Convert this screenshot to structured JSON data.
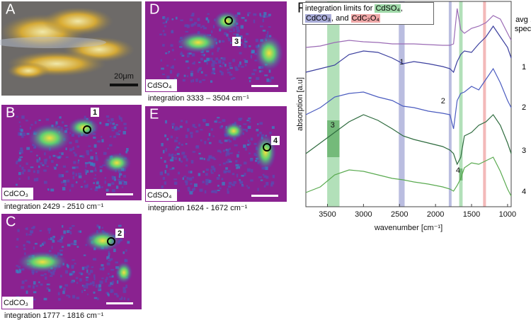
{
  "panels": [
    {
      "label": "A",
      "scale_bar": "20μm"
    },
    {
      "label": "B",
      "marker": "1",
      "compound": "CdCO₃",
      "caption": "integration 2429 - 2510 cm⁻¹"
    },
    {
      "label": "C",
      "marker": "2",
      "compound": "CdCO₃",
      "caption": "integration 1777 - 1816 cm⁻¹"
    },
    {
      "label": "D",
      "marker": "3",
      "compound": "CdSO₄",
      "caption": "integration 3333 – 3504 cm⁻¹"
    },
    {
      "label": "E",
      "marker": "4",
      "compound": "CdSO₄",
      "caption": "integration 1624 - 1672 cm⁻¹"
    }
  ],
  "chart_data": {
    "type": "line",
    "panel_label": "F",
    "legend_parts": [
      "integration limits for ",
      "CdSO₄",
      ",",
      "CdCO₃",
      ", and ",
      "CdC₂O₄"
    ],
    "x_label": "wavenumber [cm⁻¹]",
    "y_label": "absorption [a.u]",
    "xlim": [
      3800,
      950
    ],
    "xticks": [
      3500,
      3000,
      2500,
      2000,
      1500,
      1000
    ],
    "ylim": [
      0,
      29
    ],
    "x": [
      3800,
      3600,
      3400,
      3200,
      3000,
      2800,
      2600,
      2450,
      2300,
      2100,
      1900,
      1800,
      1750,
      1700,
      1650,
      1600,
      1500,
      1400,
      1300,
      1200,
      1100,
      1000,
      950
    ],
    "series": [
      {
        "name": "avg . spec.",
        "color": "#9b6bb5",
        "values": [
          22.5,
          22.7,
          23.2,
          23.5,
          23.3,
          23.2,
          23,
          23,
          23,
          22.9,
          22.8,
          22.8,
          23,
          28,
          25,
          24.5,
          25.2,
          25.5,
          26,
          27,
          26.5,
          24.5,
          23.5
        ]
      },
      {
        "name": "1",
        "color": "#3b3f9e",
        "values": [
          19,
          19.5,
          20,
          21.5,
          22,
          21.8,
          21,
          20.2,
          20.5,
          20.2,
          19.8,
          19.5,
          19,
          20.5,
          21.5,
          22,
          21.8,
          23,
          24,
          25.5,
          24,
          22.5,
          21
        ]
      },
      {
        "name": "2",
        "color": "#4a5bbf",
        "values": [
          13,
          14,
          15.5,
          16,
          16.2,
          15.5,
          15,
          14.2,
          14,
          13.5,
          13.2,
          13,
          11,
          15,
          16,
          16.2,
          17,
          16.5,
          18,
          19.5,
          17.5,
          15,
          14
        ]
      },
      {
        "name": "3",
        "color": "#2e6b3e",
        "values": [
          7.5,
          9,
          10.5,
          12,
          13,
          12.2,
          11,
          10,
          9.5,
          9,
          8.5,
          8,
          7.5,
          6,
          7,
          10,
          10.5,
          11.5,
          12,
          13,
          11.5,
          9,
          7.5
        ]
      },
      {
        "name": "4",
        "color": "#5aaa50",
        "values": [
          2,
          2.8,
          4.5,
          5.2,
          5,
          4.5,
          4,
          3.8,
          3.5,
          3.2,
          2.8,
          2.5,
          2.2,
          3,
          4,
          5.5,
          6.2,
          6,
          6.5,
          7,
          5,
          2.5,
          1.5
        ]
      }
    ],
    "bands": [
      {
        "label": "3",
        "start": 3504,
        "end": 3333,
        "color": "#9fd8a8"
      },
      {
        "label": "1",
        "start": 2510,
        "end": 2429,
        "color": "#a9acd8"
      },
      {
        "label": "2",
        "start": 1816,
        "end": 1777,
        "color": "#a9acd8"
      },
      {
        "label": "4",
        "start": 1672,
        "end": 1624,
        "color": "#9fd8a8"
      },
      {
        "start": 1340,
        "end": 1300,
        "color": "#f0a8a8"
      }
    ]
  }
}
